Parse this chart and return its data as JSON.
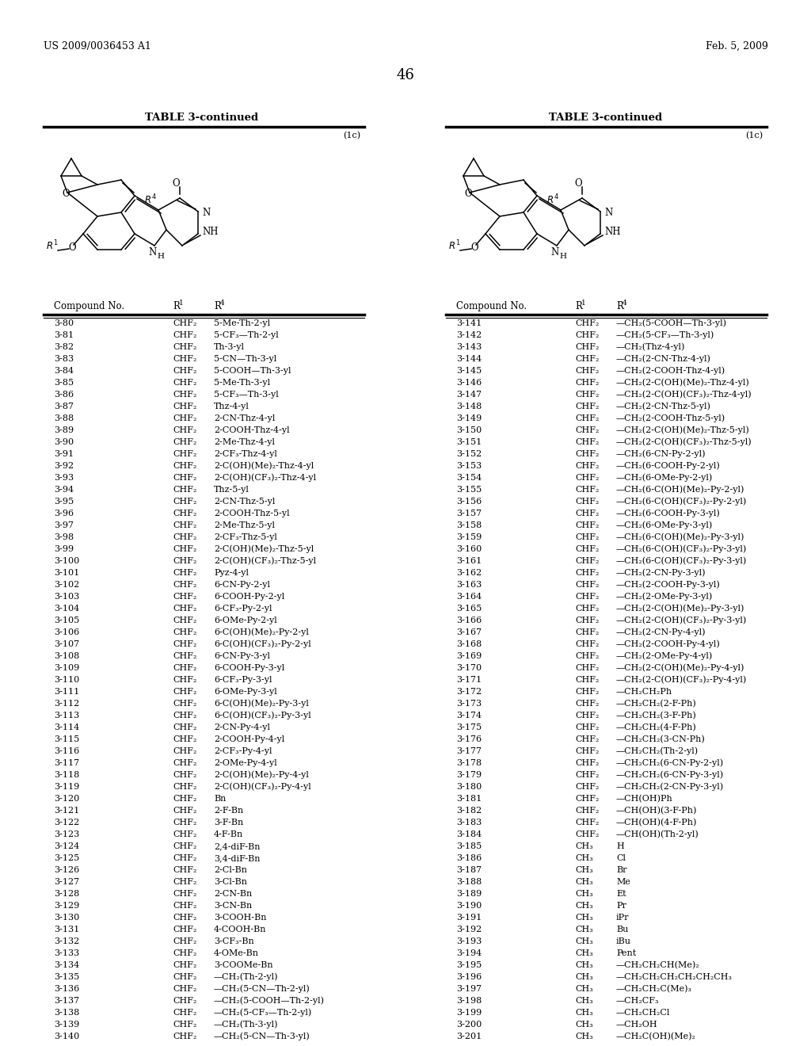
{
  "header_left": "US 2009/0036453 A1",
  "header_right": "Feb. 5, 2009",
  "page_number": "46",
  "table_title": "TABLE 3-continued",
  "formula_label": "(1c)",
  "col_headers_left": [
    "Compound No.",
    "R¹",
    "R⁴"
  ],
  "col_headers_right": [
    "Compound No.",
    "R¹",
    "R⁴"
  ],
  "left_table": [
    [
      "3-80",
      "CHF₂",
      "5-Me-Th-2-yl"
    ],
    [
      "3-81",
      "CHF₂",
      "5-CF₃—Th-2-yl"
    ],
    [
      "3-82",
      "CHF₂",
      "Th-3-yl"
    ],
    [
      "3-83",
      "CHF₂",
      "5-CN—Th-3-yl"
    ],
    [
      "3-84",
      "CHF₂",
      "5-COOH—Th-3-yl"
    ],
    [
      "3-85",
      "CHF₂",
      "5-Me-Th-3-yl"
    ],
    [
      "3-86",
      "CHF₂",
      "5-CF₃—Th-3-yl"
    ],
    [
      "3-87",
      "CHF₂",
      "Thz-4-yl"
    ],
    [
      "3-88",
      "CHF₂",
      "2-CN-Thz-4-yl"
    ],
    [
      "3-89",
      "CHF₂",
      "2-COOH-Thz-4-yl"
    ],
    [
      "3-90",
      "CHF₂",
      "2-Me-Thz-4-yl"
    ],
    [
      "3-91",
      "CHF₂",
      "2-CF₃-Thz-4-yl"
    ],
    [
      "3-92",
      "CHF₂",
      "2-C(OH)(Me)₂-Thz-4-yl"
    ],
    [
      "3-93",
      "CHF₂",
      "2-C(OH)(CF₃)₂-Thz-4-yl"
    ],
    [
      "3-94",
      "CHF₂",
      "Thz-5-yl"
    ],
    [
      "3-95",
      "CHF₂",
      "2-CN-Thz-5-yl"
    ],
    [
      "3-96",
      "CHF₂",
      "2-COOH-Thz-5-yl"
    ],
    [
      "3-97",
      "CHF₂",
      "2-Me-Thz-5-yl"
    ],
    [
      "3-98",
      "CHF₂",
      "2-CF₃-Thz-5-yl"
    ],
    [
      "3-99",
      "CHF₂",
      "2-C(OH)(Me)₂-Thz-5-yl"
    ],
    [
      "3-100",
      "CHF₂",
      "2-C(OH)(CF₃)₂-Thz-5-yl"
    ],
    [
      "3-101",
      "CHF₂",
      "Pyz-4-yl"
    ],
    [
      "3-102",
      "CHF₂",
      "6-CN-Py-2-yl"
    ],
    [
      "3-103",
      "CHF₂",
      "6-COOH-Py-2-yl"
    ],
    [
      "3-104",
      "CHF₂",
      "6-CF₃-Py-2-yl"
    ],
    [
      "3-105",
      "CHF₂",
      "6-OMe-Py-2-yl"
    ],
    [
      "3-106",
      "CHF₂",
      "6-C(OH)(Me)₂-Py-2-yl"
    ],
    [
      "3-107",
      "CHF₂",
      "6-C(OH)(CF₃)₂-Py-2-yl"
    ],
    [
      "3-108",
      "CHF₂",
      "6-CN-Py-3-yl"
    ],
    [
      "3-109",
      "CHF₂",
      "6-COOH-Py-3-yl"
    ],
    [
      "3-110",
      "CHF₂",
      "6-CF₃-Py-3-yl"
    ],
    [
      "3-111",
      "CHF₂",
      "6-OMe-Py-3-yl"
    ],
    [
      "3-112",
      "CHF₂",
      "6-C(OH)(Me)₂-Py-3-yl"
    ],
    [
      "3-113",
      "CHF₂",
      "6-C(OH)(CF₃)₂-Py-3-yl"
    ],
    [
      "3-114",
      "CHF₂",
      "2-CN-Py-4-yl"
    ],
    [
      "3-115",
      "CHF₂",
      "2-COOH-Py-4-yl"
    ],
    [
      "3-116",
      "CHF₂",
      "2-CF₃-Py-4-yl"
    ],
    [
      "3-117",
      "CHF₂",
      "2-OMe-Py-4-yl"
    ],
    [
      "3-118",
      "CHF₂",
      "2-C(OH)(Me)₂-Py-4-yl"
    ],
    [
      "3-119",
      "CHF₂",
      "2-C(OH)(CF₃)₂-Py-4-yl"
    ],
    [
      "3-120",
      "CHF₂",
      "Bn"
    ],
    [
      "3-121",
      "CHF₂",
      "2-F-Bn"
    ],
    [
      "3-122",
      "CHF₂",
      "3-F-Bn"
    ],
    [
      "3-123",
      "CHF₂",
      "4-F-Bn"
    ],
    [
      "3-124",
      "CHF₂",
      "2,4-diF-Bn"
    ],
    [
      "3-125",
      "CHF₂",
      "3,4-diF-Bn"
    ],
    [
      "3-126",
      "CHF₂",
      "2-Cl-Bn"
    ],
    [
      "3-127",
      "CHF₂",
      "3-Cl-Bn"
    ],
    [
      "3-128",
      "CHF₂",
      "2-CN-Bn"
    ],
    [
      "3-129",
      "CHF₂",
      "3-CN-Bn"
    ],
    [
      "3-130",
      "CHF₂",
      "3-COOH-Bn"
    ],
    [
      "3-131",
      "CHF₂",
      "4-COOH-Bn"
    ],
    [
      "3-132",
      "CHF₂",
      "3-CF₃-Bn"
    ],
    [
      "3-133",
      "CHF₂",
      "4-OMe-Bn"
    ],
    [
      "3-134",
      "CHF₂",
      "3-COOMe-Bn"
    ],
    [
      "3-135",
      "CHF₂",
      "—CH₂(Th-2-yl)"
    ],
    [
      "3-136",
      "CHF₂",
      "—CH₂(5-CN—Th-2-yl)"
    ],
    [
      "3-137",
      "CHF₂",
      "—CH₂(5-COOH—Th-2-yl)"
    ],
    [
      "3-138",
      "CHF₂",
      "—CH₂(5-CF₃—Th-2-yl)"
    ],
    [
      "3-139",
      "CHF₂",
      "—CH₂(Th-3-yl)"
    ],
    [
      "3-140",
      "CHF₂",
      "—CH₂(5-CN—Th-3-yl)"
    ]
  ],
  "right_table": [
    [
      "3-141",
      "CHF₂",
      "—CH₂(5-COOH—Th-3-yl)"
    ],
    [
      "3-142",
      "CHF₂",
      "—CH₂(5-CF₃—Th-3-yl)"
    ],
    [
      "3-143",
      "CHF₂",
      "—CH₂(Thz-4-yl)"
    ],
    [
      "3-144",
      "CHF₂",
      "—CH₂(2-CN-Thz-4-yl)"
    ],
    [
      "3-145",
      "CHF₂",
      "—CH₂(2-COOH-Thz-4-yl)"
    ],
    [
      "3-146",
      "CHF₂",
      "—CH₂(2-C(OH)(Me)₂-Thz-4-yl)"
    ],
    [
      "3-147",
      "CHF₂",
      "—CH₂(2-C(OH)(CF₃)₂-Thz-4-yl)"
    ],
    [
      "3-148",
      "CHF₂",
      "—CH₂(2-CN-Thz-5-yl)"
    ],
    [
      "3-149",
      "CHF₂",
      "—CH₂(2-COOH-Thz-5-yl)"
    ],
    [
      "3-150",
      "CHF₂",
      "—CH₂(2-C(OH)(Me)₂-Thz-5-yl)"
    ],
    [
      "3-151",
      "CHF₂",
      "—CH₂(2-C(OH)(CF₃)₂-Thz-5-yl)"
    ],
    [
      "3-152",
      "CHF₂",
      "—CH₂(6-CN-Py-2-yl)"
    ],
    [
      "3-153",
      "CHF₂",
      "—CH₂(6-COOH-Py-2-yl)"
    ],
    [
      "3-154",
      "CHF₂",
      "—CH₂(6-OMe-Py-2-yl)"
    ],
    [
      "3-155",
      "CHF₂",
      "—CH₂(6-C(OH)(Me)₂-Py-2-yl)"
    ],
    [
      "3-156",
      "CHF₂",
      "—CH₂(6-C(OH)(CF₃)₂-Py-2-yl)"
    ],
    [
      "3-157",
      "CHF₂",
      "—CH₂(6-COOH-Py-3-yl)"
    ],
    [
      "3-158",
      "CHF₂",
      "—CH₂(6-OMe-Py-3-yl)"
    ],
    [
      "3-159",
      "CHF₂",
      "—CH₂(6-C(OH)(Me)₂-Py-3-yl)"
    ],
    [
      "3-160",
      "CHF₂",
      "—CH₂(6-C(OH)(CF₃)₂-Py-3-yl)"
    ],
    [
      "3-161",
      "CHF₂",
      "—CH₂(6-C(OH)(CF₃)₂-Py-3-yl)"
    ],
    [
      "3-162",
      "CHF₂",
      "—CH₂(2-CN-Py-3-yl)"
    ],
    [
      "3-163",
      "CHF₂",
      "—CH₂(2-COOH-Py-3-yl)"
    ],
    [
      "3-164",
      "CHF₂",
      "—CH₂(2-OMe-Py-3-yl)"
    ],
    [
      "3-165",
      "CHF₂",
      "—CH₂(2-C(OH)(Me)₂-Py-3-yl)"
    ],
    [
      "3-166",
      "CHF₂",
      "—CH₂(2-C(OH)(CF₃)₂-Py-3-yl)"
    ],
    [
      "3-167",
      "CHF₂",
      "—CH₂(2-CN-Py-4-yl)"
    ],
    [
      "3-168",
      "CHF₂",
      "—CH₂(2-COOH-Py-4-yl)"
    ],
    [
      "3-169",
      "CHF₂",
      "—CH₂(2-OMe-Py-4-yl)"
    ],
    [
      "3-170",
      "CHF₂",
      "—CH₂(2-C(OH)(Me)₂-Py-4-yl)"
    ],
    [
      "3-171",
      "CHF₂",
      "—CH₂(2-C(OH)(CF₃)₂-Py-4-yl)"
    ],
    [
      "3-172",
      "CHF₂",
      "—CH₂CH₂Ph"
    ],
    [
      "3-173",
      "CHF₂",
      "—CH₂CH₂(2-F-Ph)"
    ],
    [
      "3-174",
      "CHF₂",
      "—CH₂CH₂(3-F-Ph)"
    ],
    [
      "3-175",
      "CHF₂",
      "—CH₂CH₂(4-F-Ph)"
    ],
    [
      "3-176",
      "CHF₂",
      "—CH₂CH₂(3-CN-Ph)"
    ],
    [
      "3-177",
      "CHF₂",
      "—CH₂CH₂(Th-2-yl)"
    ],
    [
      "3-178",
      "CHF₂",
      "—CH₂CH₂(6-CN-Py-2-yl)"
    ],
    [
      "3-179",
      "CHF₂",
      "—CH₂CH₂(6-CN-Py-3-yl)"
    ],
    [
      "3-180",
      "CHF₂",
      "—CH₂CH₂(2-CN-Py-3-yl)"
    ],
    [
      "3-181",
      "CHF₂",
      "—CH(OH)Ph"
    ],
    [
      "3-182",
      "CHF₂",
      "—CH(OH)(3-F-Ph)"
    ],
    [
      "3-183",
      "CHF₂",
      "—CH(OH)(4-F-Ph)"
    ],
    [
      "3-184",
      "CHF₂",
      "—CH(OH)(Th-2-yl)"
    ],
    [
      "3-185",
      "CH₃",
      "H"
    ],
    [
      "3-186",
      "CH₃",
      "Cl"
    ],
    [
      "3-187",
      "CH₃",
      "Br"
    ],
    [
      "3-188",
      "CH₃",
      "Me"
    ],
    [
      "3-189",
      "CH₃",
      "Et"
    ],
    [
      "3-190",
      "CH₃",
      "Pr"
    ],
    [
      "3-191",
      "CH₃",
      "iPr"
    ],
    [
      "3-192",
      "CH₃",
      "Bu"
    ],
    [
      "3-193",
      "CH₃",
      "iBu"
    ],
    [
      "3-194",
      "CH₃",
      "Pent"
    ],
    [
      "3-195",
      "CH₃",
      "—CH₂CH₂CH(Me)₂"
    ],
    [
      "3-196",
      "CH₃",
      "—CH₂CH₂CH₂CH₂CH₂CH₃"
    ],
    [
      "3-197",
      "CH₃",
      "—CH₂CH₂C(Me)₃"
    ],
    [
      "3-198",
      "CH₃",
      "—CH₂CF₃"
    ],
    [
      "3-199",
      "CH₃",
      "—CH₂CH₂Cl"
    ],
    [
      "3-200",
      "CH₃",
      "—CH₂OH"
    ],
    [
      "3-201",
      "CH₃",
      "—CH₂C(OH)(Me)₂"
    ]
  ]
}
